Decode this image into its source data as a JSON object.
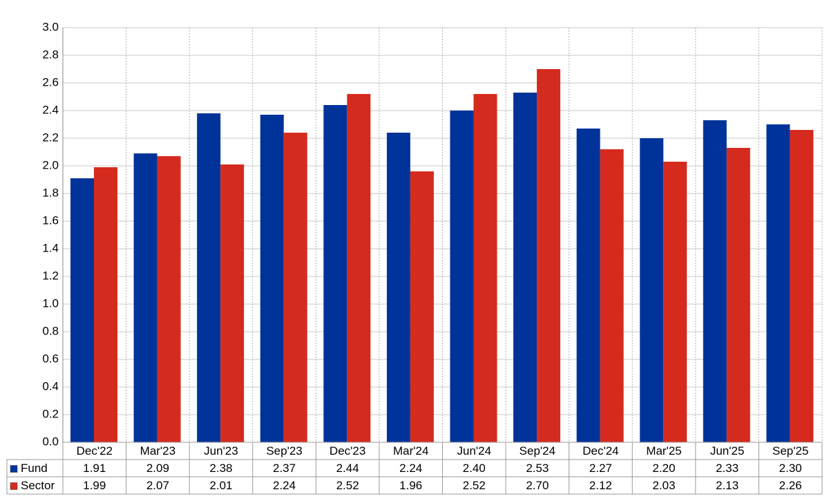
{
  "chart_data": {
    "type": "bar",
    "categories": [
      "Dec'22",
      "Mar'23",
      "Jun'23",
      "Sep'23",
      "Dec'23",
      "Mar'24",
      "Jun'24",
      "Sep'24",
      "Dec'24",
      "Mar'25",
      "Jun'25",
      "Sep'25"
    ],
    "series": [
      {
        "name": "Fund",
        "color": "#003399",
        "values": [
          1.91,
          2.09,
          2.38,
          2.37,
          2.44,
          2.24,
          2.4,
          2.53,
          2.27,
          2.2,
          2.33,
          2.3
        ],
        "value_labels": [
          "1.91",
          "2.09",
          "2.38",
          "2.37",
          "2.44",
          "2.24",
          "2.40",
          "2.53",
          "2.27",
          "2.20",
          "2.33",
          "2.30"
        ]
      },
      {
        "name": "Sector",
        "color": "#d52b1e",
        "values": [
          1.99,
          2.07,
          2.01,
          2.24,
          2.52,
          1.96,
          2.52,
          2.7,
          2.12,
          2.03,
          2.13,
          2.26
        ],
        "value_labels": [
          "1.99",
          "2.07",
          "2.01",
          "2.24",
          "2.52",
          "1.96",
          "2.52",
          "2.70",
          "2.12",
          "2.03",
          "2.13",
          "2.26"
        ]
      }
    ],
    "ylim": [
      0,
      3
    ],
    "yticks": [
      {
        "value": 0,
        "label": "0.0"
      },
      0.2,
      0.4,
      0.6,
      0.8,
      {
        "value": 1,
        "label": "1.0"
      },
      1.2,
      1.4,
      1.6,
      1.8,
      {
        "value": 2,
        "label": "2.0"
      },
      2.2,
      2.4,
      2.6,
      2.8,
      {
        "value": 3,
        "label": "3.0"
      }
    ],
    "grid": true
  }
}
